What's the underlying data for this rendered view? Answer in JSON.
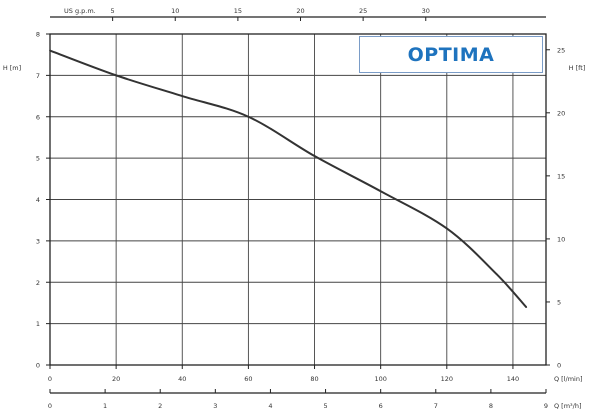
{
  "brand": {
    "name": "OPTIMA",
    "color": "#1e73be"
  },
  "chart_data": {
    "type": "line",
    "title": "",
    "series": [
      {
        "color": "#333333",
        "x": [
          0,
          20,
          40,
          60,
          80,
          100,
          120,
          135,
          144
        ],
        "y": [
          7.6,
          7.0,
          6.5,
          6.0,
          5.05,
          4.2,
          3.3,
          2.2,
          1.4
        ]
      }
    ],
    "axes": {
      "bottom": {
        "unit": "Q [l/min]",
        "xlim": [
          0,
          150
        ],
        "ticks": [
          0,
          20,
          40,
          60,
          80,
          100,
          120,
          140
        ]
      },
      "bottom2": {
        "unit": "Q [m³/h]",
        "xlim": [
          0,
          9
        ],
        "ticks": [
          0,
          1,
          2,
          3,
          4,
          5,
          6,
          7,
          8,
          9
        ]
      },
      "top": {
        "unit": "US g.p.m.",
        "xlim": [
          0,
          39.6
        ],
        "ticks": [
          5,
          10,
          15,
          20,
          25,
          30
        ]
      },
      "left": {
        "unit": "H [m]",
        "ylim": [
          0,
          8
        ],
        "ticks": [
          0,
          1,
          2,
          3,
          4,
          5,
          6,
          7,
          8
        ]
      },
      "right": {
        "unit": "H [ft]",
        "ylim": [
          0,
          26.25
        ],
        "ticks": [
          0,
          5,
          10,
          15,
          20,
          25
        ]
      }
    },
    "grid": true,
    "legend": "none"
  }
}
